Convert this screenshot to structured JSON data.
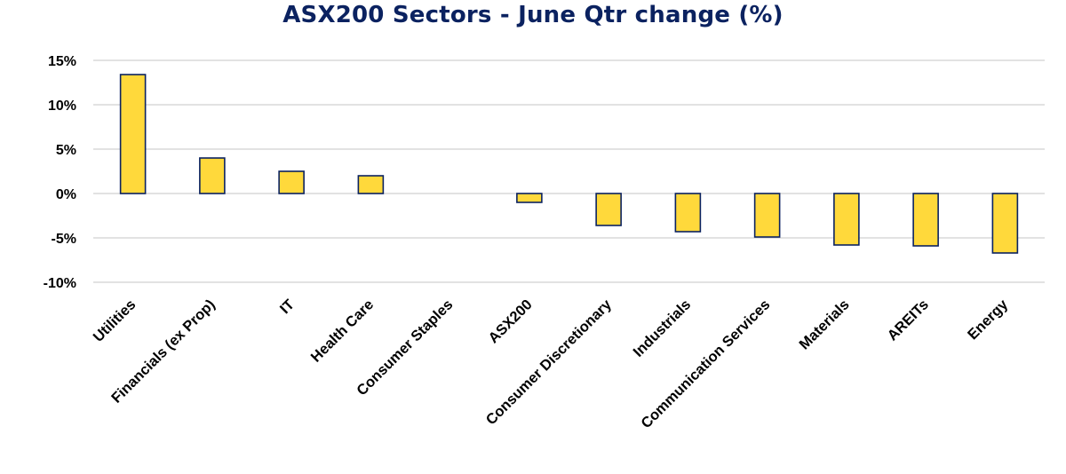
{
  "chart_data": {
    "type": "bar",
    "title": "ASX200 Sectors - June Qtr change (%)",
    "xlabel": "",
    "ylabel": "",
    "categories": [
      "Utilities",
      "Financials (ex Prop)",
      "IT",
      "Health Care",
      "Consumer Staples",
      "ASX200",
      "Consumer Discretionary",
      "Industrials",
      "Communication Services",
      "Materials",
      "AREITs",
      "Energy"
    ],
    "values": [
      13.4,
      4.0,
      2.5,
      2.0,
      0.0,
      -1.0,
      -3.6,
      -4.3,
      -4.9,
      -5.8,
      -5.9,
      -6.7
    ],
    "ylim": [
      -10,
      15
    ],
    "yticks": [
      15,
      10,
      5,
      0,
      -5,
      -10
    ],
    "ytick_labels": [
      "15%",
      "10%",
      "5%",
      "0%",
      "-5%",
      "-10%"
    ],
    "grid": true,
    "legend": "none",
    "colors": {
      "bar_fill": "#FFD93B",
      "bar_edge": "#0B2260",
      "title": "#0B2260",
      "grid": "#D9D9D9"
    }
  }
}
